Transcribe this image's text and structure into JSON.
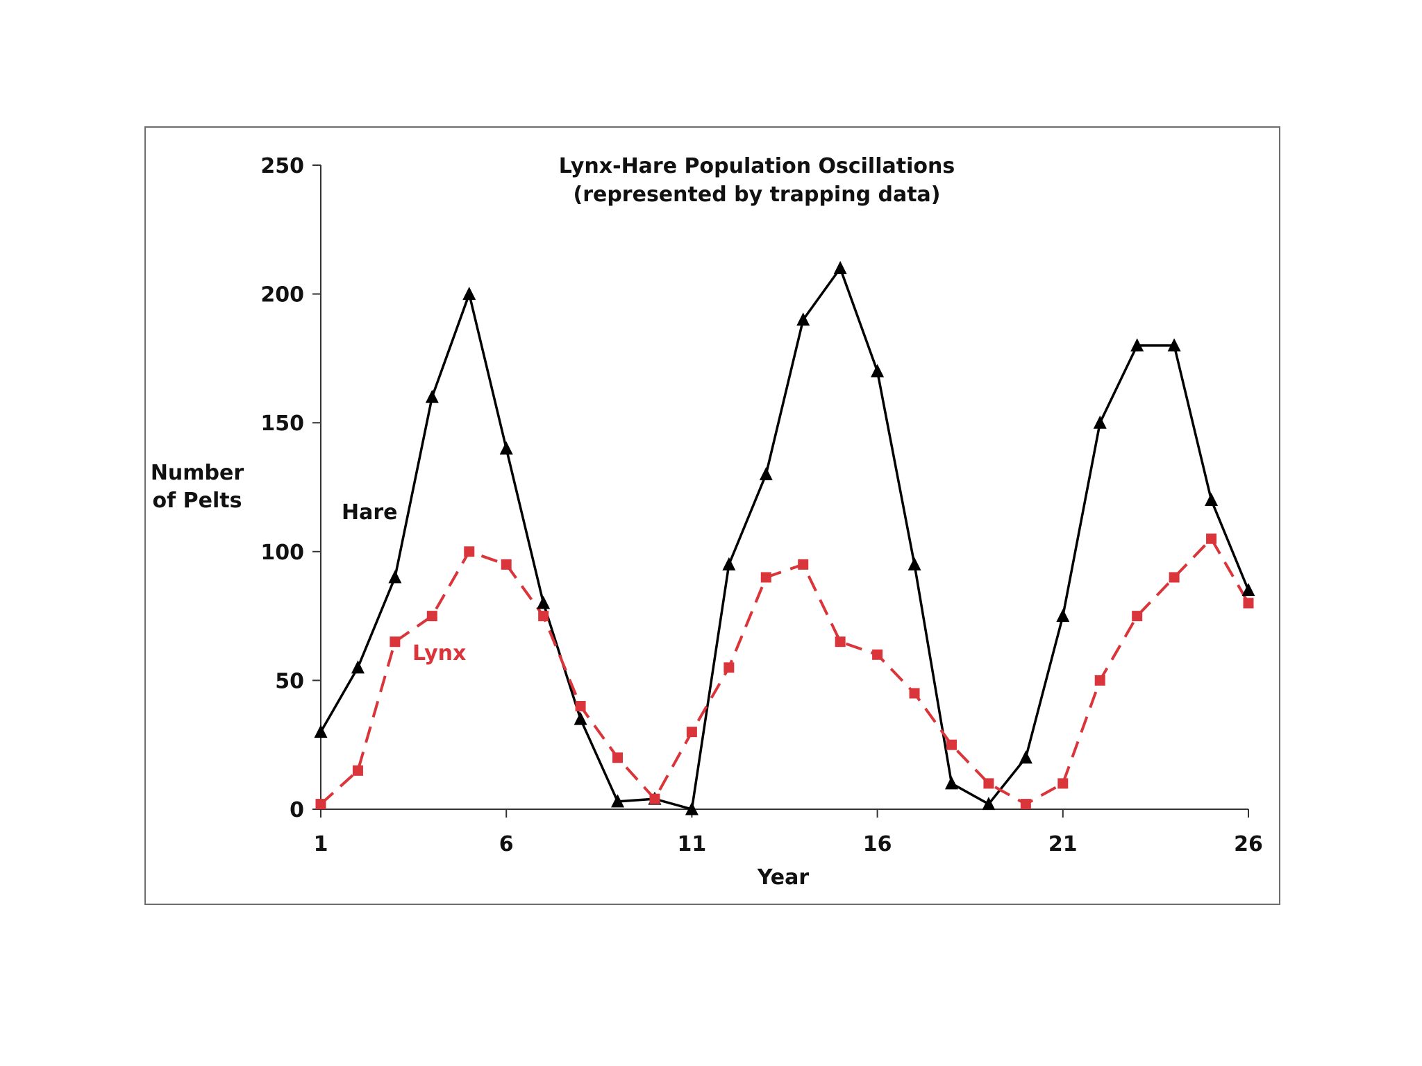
{
  "chart_data": {
    "type": "line",
    "title": "Lynx-Hare Population Oscillations",
    "subtitle": "(represented by trapping data)",
    "xlabel": "Year",
    "ylabel_lines": [
      "Number",
      "of Pelts"
    ],
    "x": [
      1,
      2,
      3,
      4,
      5,
      6,
      7,
      8,
      9,
      10,
      11,
      12,
      13,
      14,
      15,
      16,
      17,
      18,
      19,
      20,
      21,
      22,
      23,
      24,
      25,
      26
    ],
    "x_tick_labels": [
      "1",
      "6",
      "11",
      "16",
      "21",
      "26"
    ],
    "x_ticks": [
      1,
      6,
      11,
      16,
      21,
      26
    ],
    "y_tick_labels": [
      "0",
      "50",
      "100",
      "150",
      "200",
      "250"
    ],
    "y_ticks": [
      0,
      50,
      100,
      150,
      200,
      250
    ],
    "xlim": [
      1,
      26
    ],
    "ylim": [
      0,
      250
    ],
    "grid": false,
    "legend": "inline labels",
    "series": [
      {
        "name": "Hare",
        "color": "#000000",
        "marker": "triangle",
        "line_style": "solid",
        "values": [
          30,
          55,
          90,
          160,
          200,
          140,
          80,
          35,
          3,
          4,
          0,
          95,
          130,
          190,
          210,
          170,
          95,
          10,
          2,
          20,
          75,
          150,
          180,
          180,
          120,
          85
        ]
      },
      {
        "name": "Lynx",
        "color": "#d9353a",
        "marker": "square",
        "line_style": "dashed",
        "values": [
          2,
          15,
          65,
          75,
          100,
          95,
          75,
          40,
          20,
          4,
          30,
          55,
          90,
          95,
          65,
          60,
          45,
          25,
          10,
          2,
          10,
          50,
          75,
          90,
          105,
          80
        ]
      }
    ]
  }
}
